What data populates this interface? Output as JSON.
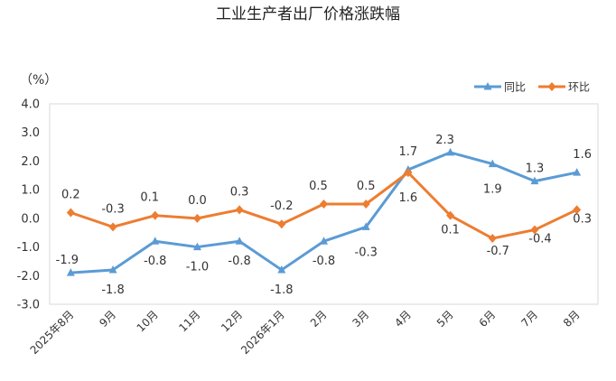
{
  "chart_data": {
    "type": "line",
    "title": "工业生产者出厂价格涨跌幅",
    "unit_label": "（%）",
    "categories": [
      "2025年8月",
      "9月",
      "10月",
      "11月",
      "12月",
      "2026年1月",
      "2月",
      "3月",
      "4月",
      "5月",
      "6月",
      "7月",
      "8月"
    ],
    "ylim": [
      -3.0,
      4.0
    ],
    "yticks": [
      "4.0",
      "3.0",
      "2.0",
      "1.0",
      "0.0",
      "-1.0",
      "-2.0",
      "-3.0"
    ],
    "grid": false,
    "legend_position": "top-right",
    "series": [
      {
        "name": "同比",
        "color": "#5B9BD5",
        "marker": "triangle",
        "values": [
          -1.9,
          -1.8,
          -0.8,
          -1.0,
          -0.8,
          -1.8,
          -0.8,
          -0.3,
          1.7,
          2.3,
          1.9,
          1.3,
          1.6
        ],
        "labels": [
          "-1.9",
          "-1.8",
          "-0.8",
          "-1.0",
          "-0.8",
          "-1.8",
          "-0.8",
          "-0.3",
          "1.7",
          "2.3",
          "1.9",
          "1.3",
          "1.6"
        ]
      },
      {
        "name": "环比",
        "color": "#ED7D31",
        "marker": "diamond",
        "values": [
          0.2,
          -0.3,
          0.1,
          0.0,
          0.3,
          -0.2,
          0.5,
          0.5,
          1.6,
          0.1,
          -0.7,
          -0.4,
          0.3
        ],
        "labels": [
          "0.2",
          "-0.3",
          "0.1",
          "0.0",
          "0.3",
          "-0.2",
          "0.5",
          "0.5",
          "1.6",
          "0.1",
          "-0.7",
          "-0.4",
          "0.3"
        ]
      }
    ]
  }
}
